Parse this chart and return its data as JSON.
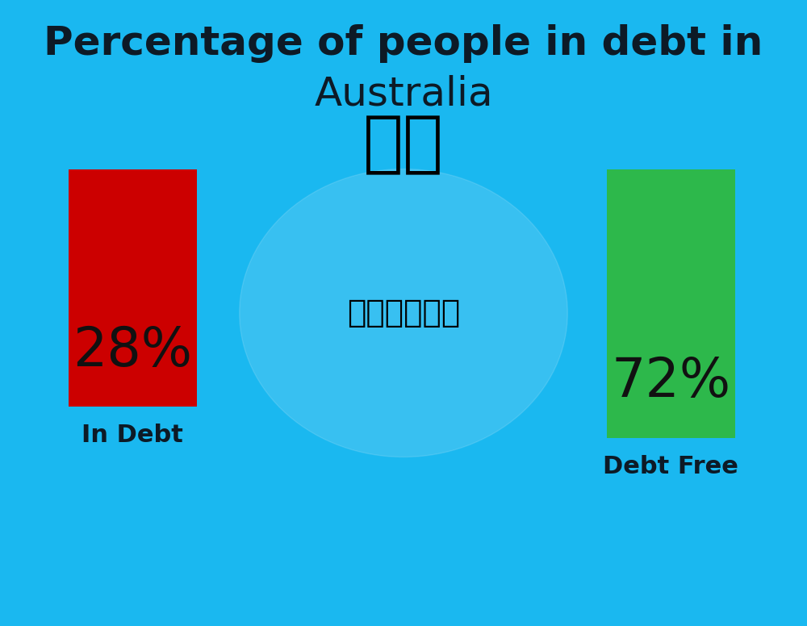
{
  "title_line1": "Percentage of people in debt in",
  "title_line2": "Australia",
  "title_fontsize": 36,
  "title_color": "#0d1a26",
  "background_color": "#1ab8f0",
  "bar1_value": 28,
  "bar2_value": 72,
  "bar1_label": "28%",
  "bar2_label": "72%",
  "bar1_color": "#cc0000",
  "bar2_color": "#2db84b",
  "label1": "In Debt",
  "label2": "Debt Free",
  "label_color": "#0d1a26",
  "label_fontsize": 22,
  "value_fontsize": 48,
  "flag_emoji": "🇦🇺",
  "flag_fontsize": 60
}
